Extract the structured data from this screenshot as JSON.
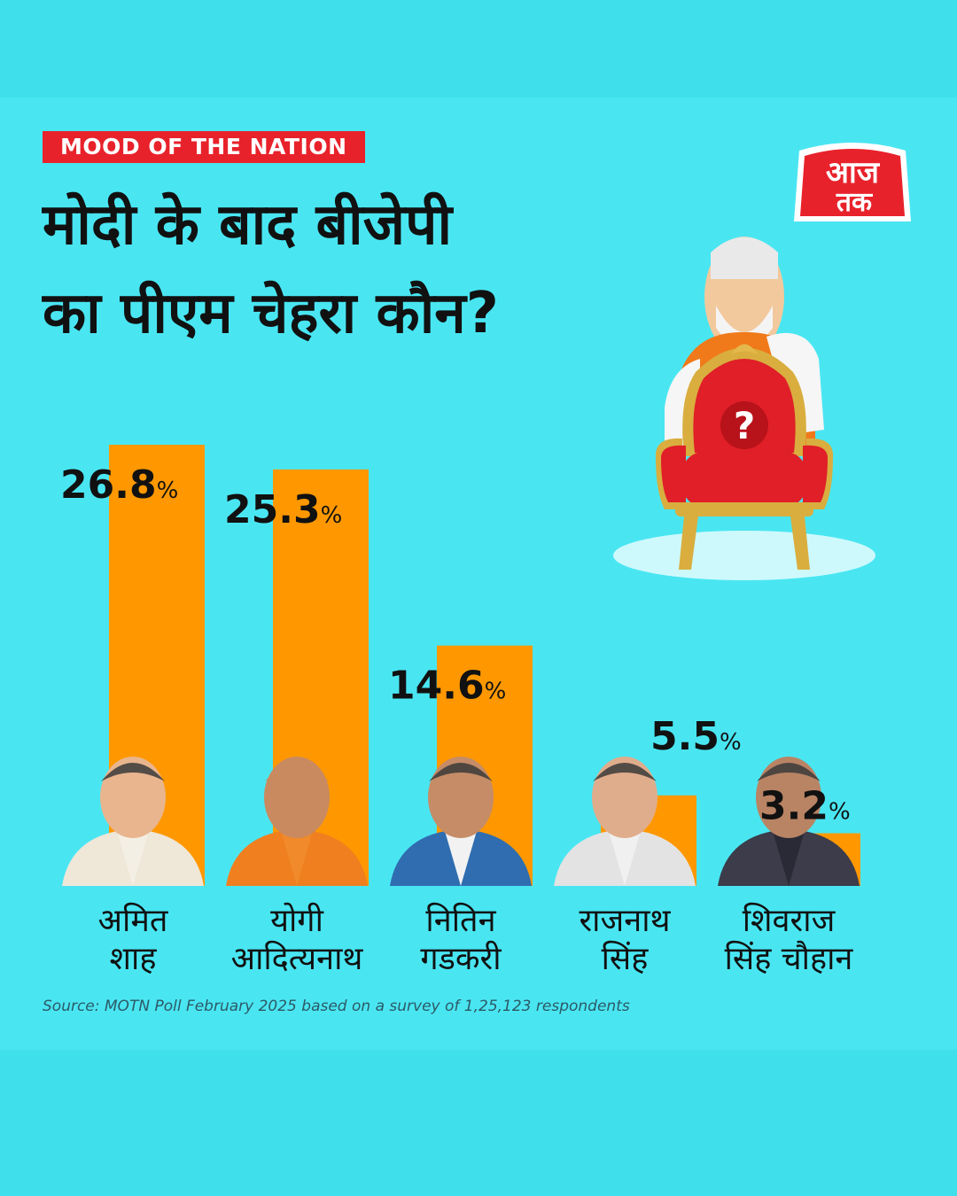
{
  "header": {
    "tag": "MOOD OF THE NATION",
    "headline_line1": "मोदी के बाद बीजेपी",
    "headline_line2": "का पीएम चेहरा कौन?"
  },
  "logo": {
    "line1": "आज",
    "line2": "तक",
    "icon": "aaj-tak-logo"
  },
  "illustration": {
    "icon": "throne-with-question-icon",
    "mark": "?"
  },
  "colors": {
    "background": "#49e6f2",
    "bar": "#ff9800",
    "tag": "#e8222b",
    "text": "#111111"
  },
  "chart_data": {
    "type": "bar",
    "categories": [
      "अमित शाह",
      "योगी आदित्यनाथ",
      "नितिन गडकरी",
      "राजनाथ सिंह",
      "शिवराज सिंह चौहान"
    ],
    "labels": [
      {
        "line1": "अमित",
        "line2": "शाह"
      },
      {
        "line1": "योगी",
        "line2": "आदित्यनाथ"
      },
      {
        "line1": "नितिन",
        "line2": "गडकरी"
      },
      {
        "line1": "राजनाथ",
        "line2": "सिंह"
      },
      {
        "line1": "शिवराज",
        "line2": "सिंह चौहान"
      }
    ],
    "values": [
      26.8,
      25.3,
      14.6,
      5.5,
      3.2
    ],
    "value_labels": [
      "26.8",
      "25.3",
      "14.6",
      "5.5",
      "3.2"
    ],
    "unit": "%",
    "ylim": [
      0,
      26.8
    ],
    "grid": false,
    "legend": "none"
  },
  "source": "Source: MOTN Poll February 2025 based on a survey of 1,25,123 respondents"
}
